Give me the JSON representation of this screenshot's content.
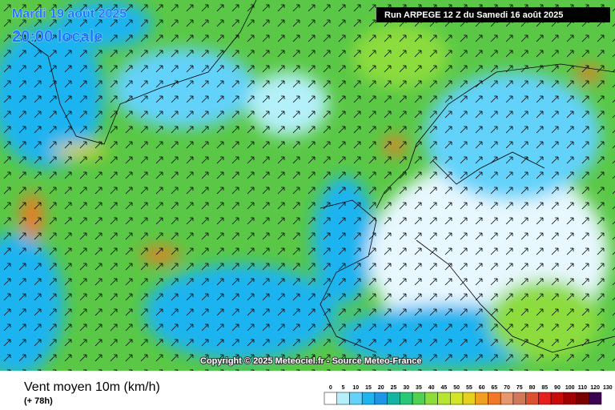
{
  "header": {
    "date": "Mardi 19 août 2025",
    "time": "20:00 locale",
    "run": "Run ARPEGE 12 Z du Samedi 16 août 2025"
  },
  "copyright": "Copyright © 2025 Meteociel.fr - Source Meteo-France",
  "footer": {
    "title": "Vent moyen 10m (km/h)",
    "lead": "(+ 78h)"
  },
  "scale": {
    "ticks": [
      0,
      5,
      10,
      15,
      20,
      25,
      30,
      35,
      40,
      45,
      50,
      55,
      60,
      65,
      70,
      75,
      80,
      85,
      90,
      100,
      110,
      120,
      130
    ],
    "colors": [
      "#ffffff",
      "#b4f0fa",
      "#64d2fa",
      "#1eb4f0",
      "#1e96e6",
      "#14b4a0",
      "#28c878",
      "#50d250",
      "#8cdc3c",
      "#b4e632",
      "#d2e628",
      "#e6d21e",
      "#f0a01e",
      "#f07828",
      "#e8966e",
      "#d2785a",
      "#dc5032",
      "#e61e1e",
      "#c80a0a",
      "#a00000",
      "#780000",
      "#3c0050"
    ]
  }
}
